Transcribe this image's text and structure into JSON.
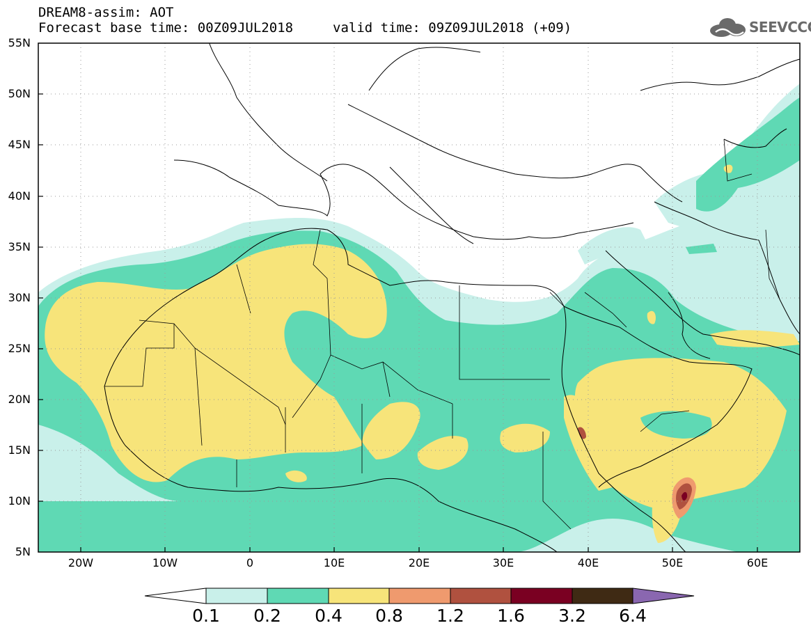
{
  "title": {
    "line1": "DREAM8-assim: AOT",
    "line2": "Forecast base time: 00Z09JUL2018",
    "valid": "valid time: 09Z09JUL2018 (+09)"
  },
  "logo": {
    "text": "SEEVCCC",
    "icon": "cloud-icon"
  },
  "map": {
    "lat_labels": [
      "55N",
      "50N",
      "45N",
      "40N",
      "35N",
      "30N",
      "25N",
      "20N",
      "15N",
      "10N",
      "5N"
    ],
    "lon_labels": [
      "20W",
      "10W",
      "0",
      "10E",
      "20E",
      "30E",
      "40E",
      "50E",
      "60E"
    ],
    "lat_range": [
      5,
      55
    ],
    "lon_range": [
      -25,
      65
    ],
    "grid": "dotted"
  },
  "colorbar": {
    "labels": [
      "0.1",
      "0.2",
      "0.4",
      "0.8",
      "1.2",
      "1.6",
      "3.2",
      "6.4"
    ],
    "colors": [
      "#ffffff",
      "#c9f0ea",
      "#5fd9b4",
      "#f7e47a",
      "#ef9a6e",
      "#b0513f",
      "#7a0022",
      "#3f2a14",
      "#8a67b0"
    ]
  },
  "colors": {
    "aot_0_1": "#c9f0ea",
    "aot_0_2": "#5fd9b4",
    "aot_0_4": "#f7e47a",
    "aot_0_8": "#ef9a6e",
    "aot_1_2": "#b0513f",
    "aot_1_6": "#7a0022"
  }
}
